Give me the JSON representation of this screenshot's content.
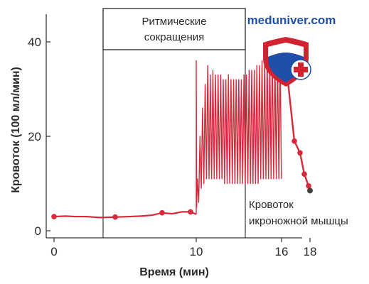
{
  "chart_data": {
    "type": "line",
    "xlabel": "Время (мин)",
    "ylabel": "Кровоток (100 мл/мин)",
    "x_ticks": [
      0,
      10,
      16,
      18
    ],
    "y_ticks": [
      0,
      20,
      40
    ],
    "xlim": [
      -0.3,
      18.5
    ],
    "ylim": [
      -1,
      45
    ],
    "grid": false,
    "series": [
      {
        "color": "#d8283c",
        "pre_contraction": {
          "x": [
            0,
            0.8,
            1.5,
            2.3,
            3.2,
            4.3,
            5.3,
            6.1,
            6.9,
            7.6,
            8.3,
            9.0,
            9.6,
            10.0
          ],
          "y": [
            3.0,
            3.1,
            3.0,
            3.0,
            2.8,
            2.9,
            3.0,
            3.1,
            3.3,
            3.8,
            3.6,
            4.0,
            4.0,
            3.5
          ],
          "markers_x": [
            0,
            4.3,
            7.6,
            9.6
          ]
        },
        "contraction_phase": {
          "x_start": 10,
          "x_end": 16,
          "cycles": 33,
          "peaks": [
            11,
            20,
            26,
            31,
            35,
            33,
            34,
            33,
            33,
            33,
            32,
            32,
            33,
            32,
            32,
            32,
            32,
            32,
            33,
            33,
            34,
            34,
            34,
            35,
            35,
            36,
            36,
            37,
            37,
            37,
            37,
            37,
            37
          ],
          "troughs": [
            6,
            9,
            10,
            11,
            11,
            11,
            11,
            11,
            11,
            11,
            10,
            10,
            10,
            10,
            10,
            10,
            10,
            10,
            10,
            10,
            10,
            10,
            10,
            10,
            11,
            11,
            11,
            11,
            11,
            11,
            11,
            11,
            11
          ]
        },
        "recovery": {
          "x": [
            16,
            16.4,
            16.9,
            17.3,
            17.6,
            17.9,
            18.0
          ],
          "y": [
            38,
            33,
            19,
            16.5,
            12,
            9.5,
            8.5
          ],
          "markers_x": [
            16.9,
            17.3,
            17.6,
            17.9
          ]
        }
      }
    ],
    "annotations": {
      "bracket_label": [
        "Ритмические",
        "сокращения"
      ],
      "series_label": [
        "Кровоток",
        "икроножной мышцы"
      ]
    }
  },
  "watermark": {
    "text": "meduniver.com"
  }
}
